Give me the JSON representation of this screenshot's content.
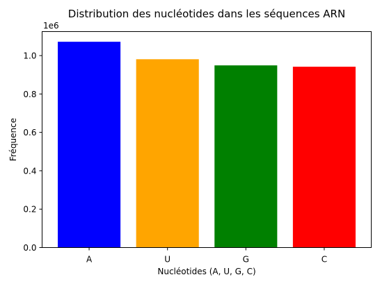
{
  "chart_data": {
    "type": "bar",
    "title": "Distribution des nucléotides dans les séquences ARN",
    "xlabel": "Nucléotides (A, U, G, C)",
    "ylabel": "Fréquence",
    "categories": [
      "A",
      "U",
      "G",
      "C"
    ],
    "values": [
      1072000,
      981000,
      949000,
      942000
    ],
    "colors": [
      "#0000ff",
      "#ffa500",
      "#008000",
      "#ff0000"
    ],
    "ylim": [
      0,
      1125000
    ],
    "yticks": [
      0,
      200000,
      400000,
      600000,
      800000,
      1000000
    ],
    "ytick_labels": [
      "0.0",
      "0.2",
      "0.4",
      "0.6",
      "0.8",
      "1.0"
    ],
    "y_offset_label": "1e6",
    "grid": false,
    "legend": "none"
  }
}
